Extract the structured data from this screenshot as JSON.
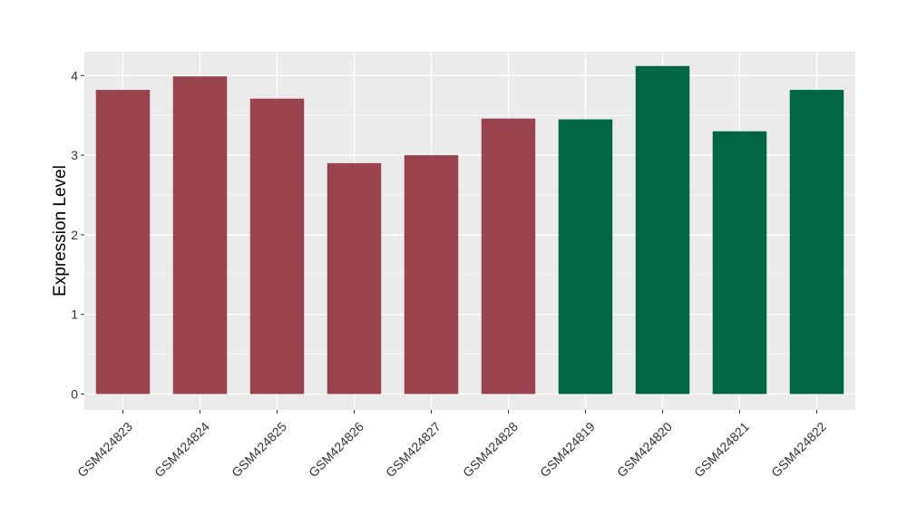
{
  "chart_data": {
    "type": "bar",
    "title": "",
    "xlabel": "",
    "ylabel": "Expression Level",
    "categories": [
      "GSM424823",
      "GSM424824",
      "GSM424825",
      "GSM424826",
      "GSM424827",
      "GSM424828",
      "GSM424819",
      "GSM424820",
      "GSM424821",
      "GSM424822"
    ],
    "values": [
      3.82,
      3.99,
      3.71,
      2.9,
      3.0,
      3.46,
      3.45,
      4.12,
      3.3,
      3.82
    ],
    "bar_colors": [
      "#99434f",
      "#99434f",
      "#99434f",
      "#99434f",
      "#99434f",
      "#99434f",
      "#006644",
      "#006644",
      "#006644",
      "#006644"
    ],
    "yticks": [
      0,
      1,
      2,
      3,
      4
    ],
    "ylim": [
      -0.2,
      4.3
    ],
    "grid": true,
    "panel_background": "#ebebeb"
  }
}
